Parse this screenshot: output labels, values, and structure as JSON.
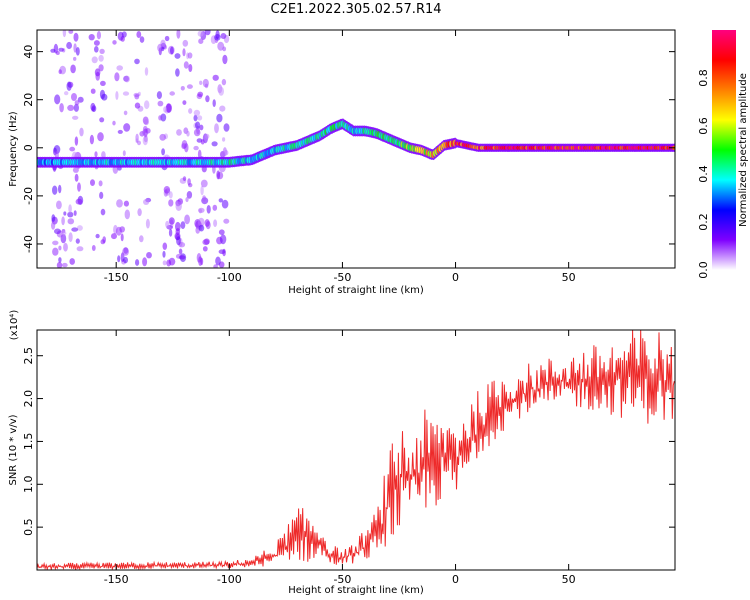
{
  "title": "C2E1.2022.305.02.57.R14",
  "chart_data": [
    {
      "type": "heatmap",
      "xlabel": "Height of straight line (km)",
      "ylabel": "Frequency (Hz)",
      "xlim": [
        -185,
        97
      ],
      "ylim": [
        -50,
        49
      ],
      "xticks": [
        -150,
        -100,
        -50,
        0,
        50
      ],
      "yticks": [
        -40,
        -20,
        0,
        20,
        40
      ],
      "ridge": {
        "x": [
          -185,
          -160,
          -140,
          -120,
          -100,
          -90,
          -80,
          -70,
          -60,
          -55,
          -50,
          -45,
          -40,
          -35,
          -30,
          -25,
          -20,
          -15,
          -10,
          -5,
          0,
          5,
          10,
          20,
          50,
          97
        ],
        "freq": [
          -6,
          -6,
          -6,
          -6,
          -6,
          -5,
          -1,
          1,
          5,
          8,
          10,
          7,
          7,
          6,
          4,
          2,
          0,
          -1,
          -3,
          1,
          2,
          1,
          0,
          0,
          0,
          0
        ],
        "level": [
          0.35,
          0.4,
          0.4,
          0.4,
          0.45,
          0.4,
          0.4,
          0.45,
          0.45,
          0.5,
          0.45,
          0.4,
          0.45,
          0.5,
          0.5,
          0.55,
          0.6,
          0.65,
          0.75,
          0.85,
          0.9,
          0.9,
          0.9,
          0.95,
          1.0,
          1.0
        ]
      },
      "noise_x_range": [
        -185,
        -100
      ],
      "colorbar": {
        "label": "Normalized spectral amplitude",
        "range": [
          0,
          1
        ],
        "ticks": [
          "0.0",
          "0.2",
          "0.4",
          "0.6",
          "0.8"
        ],
        "colors": [
          "#ffffff",
          "#7f00ff",
          "#0000ff",
          "#00ffff",
          "#00ff00",
          "#ffff00",
          "#ff7f00",
          "#ff0000",
          "#ff007f"
        ]
      }
    },
    {
      "type": "line",
      "xlabel": "Height of straight line (km)",
      "ylabel": "SNR (10 * v/v)",
      "y_multiplier": "(x10⁴)",
      "xlim": [
        -185,
        97
      ],
      "ylim": [
        0,
        2.8
      ],
      "xticks": [
        -150,
        -100,
        -50,
        0,
        50
      ],
      "yticks": [
        "0.5",
        "1.0",
        "1.5",
        "2.0",
        "2.5"
      ],
      "color": "#ee2a2a",
      "envelope": {
        "x": [
          -185,
          -100,
          -90,
          -80,
          -75,
          -70,
          -65,
          -60,
          -55,
          -50,
          -45,
          -40,
          -35,
          -30,
          -25,
          -20,
          -15,
          -10,
          -5,
          0,
          5,
          10,
          20,
          30,
          50,
          70,
          80,
          97
        ],
        "lo": [
          0.0,
          0.02,
          0.03,
          0.05,
          0.1,
          0.1,
          0.08,
          0.1,
          0.05,
          0.05,
          0.08,
          0.1,
          0.15,
          0.3,
          0.4,
          0.5,
          0.6,
          0.7,
          0.8,
          0.8,
          1.0,
          1.3,
          1.6,
          1.8,
          1.9,
          1.8,
          1.7,
          1.7
        ],
        "hi": [
          0.08,
          0.1,
          0.15,
          0.3,
          0.5,
          0.75,
          0.7,
          0.6,
          0.3,
          0.25,
          0.3,
          0.5,
          0.7,
          1.3,
          1.8,
          1.6,
          1.9,
          1.8,
          1.9,
          1.8,
          2.0,
          2.1,
          2.3,
          2.4,
          2.55,
          2.7,
          2.85,
          2.8
        ]
      }
    }
  ]
}
